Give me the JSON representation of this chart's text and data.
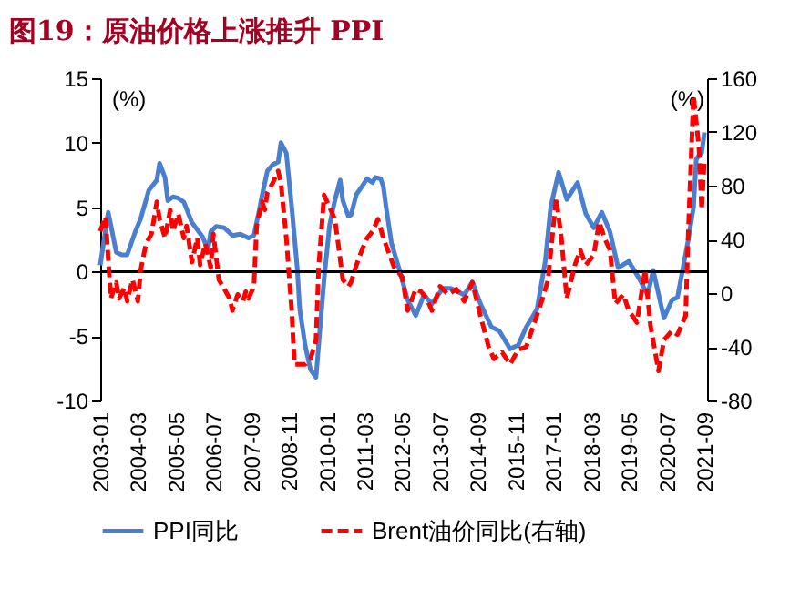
{
  "chart_data": {
    "type": "line",
    "title": "图19：原油价格上涨推升 PPI",
    "ylabel": "(%)",
    "y2label": "(%)",
    "xlim": [
      "2003-01",
      "2021-10"
    ],
    "xticks": [
      "2003-01",
      "2004-03",
      "2005-05",
      "2006-07",
      "2007-09",
      "2008-11",
      "2010-01",
      "2011-03",
      "2012-05",
      "2013-07",
      "2014-09",
      "2015-11",
      "2017-01",
      "2018-03",
      "2019-05",
      "2020-07",
      "2021-09"
    ],
    "ylim": [
      -10,
      15
    ],
    "yticks": [
      -10,
      -5,
      0,
      5,
      10,
      15
    ],
    "y2lim": [
      -80,
      160
    ],
    "y2ticks": [
      -80,
      -40,
      0,
      40,
      80,
      120,
      160
    ],
    "ref_lines": [
      {
        "axis": "y",
        "value": 0,
        "color": "#000000"
      }
    ],
    "legend": "bottom",
    "grid": false,
    "series": [
      {
        "name": "PPI同比",
        "color": "#4a7fcf",
        "line_style": "solid",
        "x": [
          "2003-01",
          "2003-04",
          "2003-07",
          "2003-09",
          "2003-11",
          "2004-02",
          "2004-04",
          "2004-07",
          "2004-10",
          "2004-11",
          "2005-01",
          "2005-02",
          "2005-04",
          "2005-06",
          "2005-08",
          "2005-11",
          "2006-03",
          "2006-05",
          "2006-06",
          "2006-08",
          "2006-11",
          "2007-02",
          "2007-05",
          "2007-08",
          "2007-10",
          "2007-12",
          "2008-01",
          "2008-03",
          "2008-05",
          "2008-07",
          "2008-08",
          "2008-10",
          "2008-12",
          "2009-02",
          "2009-03",
          "2009-05",
          "2009-07",
          "2009-09",
          "2009-10",
          "2009-12",
          "2010-02",
          "2010-04",
          "2010-06",
          "2010-07",
          "2010-09",
          "2010-10",
          "2010-12",
          "2011-02",
          "2011-04",
          "2011-06",
          "2011-07",
          "2011-09",
          "2011-10",
          "2011-11",
          "2012-01",
          "2012-04",
          "2012-07",
          "2012-10",
          "2013-01",
          "2013-04",
          "2013-08",
          "2013-11",
          "2014-04",
          "2014-07",
          "2014-10",
          "2015-02",
          "2015-05",
          "2015-09",
          "2015-12",
          "2016-03",
          "2016-07",
          "2016-10",
          "2016-12",
          "2017-03",
          "2017-06",
          "2017-10",
          "2018-01",
          "2018-04",
          "2018-07",
          "2018-10",
          "2019-01",
          "2019-05",
          "2019-09",
          "2019-12",
          "2020-02",
          "2020-06",
          "2020-09",
          "2020-11",
          "2021-03",
          "2021-05",
          "2021-06",
          "2021-07",
          "2021-08",
          "2021-09"
        ],
        "values": [
          0.5,
          4.6,
          1.5,
          1.3,
          1.3,
          3.1,
          4.1,
          6.3,
          7.1,
          8.4,
          7.3,
          5.5,
          5.8,
          5.7,
          5.4,
          3.8,
          2.7,
          1.7,
          3.1,
          3.5,
          3.4,
          2.8,
          2.9,
          2.6,
          2.8,
          4.8,
          5.9,
          7.8,
          8.3,
          8.5,
          10.0,
          9.2,
          5.0,
          0.3,
          -2.9,
          -5.7,
          -7.6,
          -8.2,
          -5.7,
          -0.6,
          3.6,
          5.5,
          7.1,
          5.5,
          4.3,
          4.4,
          6.0,
          6.6,
          7.2,
          6.9,
          7.3,
          7.2,
          6.6,
          5.0,
          2.2,
          0.1,
          -2.2,
          -3.4,
          -1.8,
          -2.5,
          -1.3,
          -1.3,
          -1.8,
          -0.8,
          -2.5,
          -4.3,
          -4.6,
          -6.0,
          -5.7,
          -4.3,
          -2.9,
          0.8,
          5.0,
          7.7,
          5.6,
          6.9,
          4.5,
          3.4,
          4.6,
          3.1,
          0.3,
          0.8,
          -0.6,
          -1.8,
          0.1,
          -3.6,
          -2.2,
          -2.0,
          2.4,
          5.0,
          8.7,
          9.0,
          9.2,
          10.8
        ]
      },
      {
        "name": "Brent油价同比(右轴)",
        "color": "#ff0000",
        "line_style": "dashed",
        "axis": "y2",
        "x": [
          "2003-01",
          "2003-03",
          "2003-05",
          "2003-07",
          "2003-08",
          "2003-10",
          "2003-11",
          "2004-01",
          "2004-03",
          "2004-04",
          "2004-06",
          "2004-08",
          "2004-10",
          "2004-11",
          "2005-01",
          "2005-03",
          "2005-04",
          "2005-06",
          "2005-08",
          "2005-09",
          "2005-11",
          "2006-01",
          "2006-02",
          "2006-04",
          "2006-06",
          "2006-07",
          "2006-09",
          "2006-11",
          "2007-01",
          "2007-02",
          "2007-04",
          "2007-06",
          "2007-07",
          "2007-08",
          "2007-10",
          "2007-11",
          "2008-01",
          "2008-02",
          "2008-03",
          "2008-05",
          "2008-07",
          "2008-08",
          "2008-10",
          "2008-12",
          "2009-01",
          "2009-03",
          "2009-05",
          "2009-07",
          "2009-09",
          "2009-10",
          "2009-12",
          "2010-02",
          "2010-04",
          "2010-05",
          "2010-07",
          "2010-09",
          "2010-10",
          "2010-12",
          "2011-02",
          "2011-04",
          "2011-06",
          "2011-08",
          "2011-10",
          "2012-02",
          "2012-05",
          "2012-07",
          "2012-10",
          "2012-12",
          "2013-02",
          "2013-04",
          "2013-07",
          "2013-10",
          "2014-01",
          "2014-04",
          "2014-07",
          "2014-10",
          "2015-01",
          "2015-03",
          "2015-06",
          "2015-09",
          "2015-12",
          "2016-03",
          "2016-06",
          "2016-09",
          "2016-11",
          "2017-02",
          "2017-04",
          "2017-06",
          "2017-09",
          "2017-11",
          "2018-01",
          "2018-04",
          "2018-06",
          "2018-08",
          "2018-10",
          "2018-12",
          "2019-03",
          "2019-05",
          "2019-08",
          "2019-11",
          "2020-01",
          "2020-04",
          "2020-06",
          "2020-09",
          "2020-11",
          "2021-02",
          "2021-03",
          "2021-05",
          "2021-07",
          "2021-08",
          "2021-09"
        ],
        "values": [
          46,
          57,
          -4,
          8,
          -4,
          4,
          -6,
          10,
          -6,
          17,
          37,
          44,
          68,
          55,
          41,
          62,
          46,
          59,
          41,
          50,
          23,
          41,
          21,
          37,
          19,
          44,
          10,
          3,
          -4,
          -13,
          -1,
          -6,
          1,
          -4,
          5,
          50,
          68,
          62,
          75,
          82,
          91,
          82,
          41,
          -13,
          -53,
          -53,
          -53,
          -49,
          -35,
          19,
          73,
          64,
          55,
          41,
          10,
          5,
          8,
          21,
          32,
          41,
          46,
          55,
          41,
          19,
          12,
          -13,
          3,
          1,
          -4,
          -13,
          5,
          -1,
          3,
          -6,
          8,
          -17,
          -40,
          -49,
          -44,
          -53,
          -42,
          -40,
          -22,
          -4,
          10,
          71,
          41,
          -4,
          21,
          32,
          21,
          28,
          53,
          41,
          32,
          -8,
          -1,
          -13,
          -22,
          17,
          -24,
          -58,
          -35,
          -28,
          -31,
          -17,
          41,
          147,
          109,
          62,
          100
        ]
      }
    ]
  }
}
